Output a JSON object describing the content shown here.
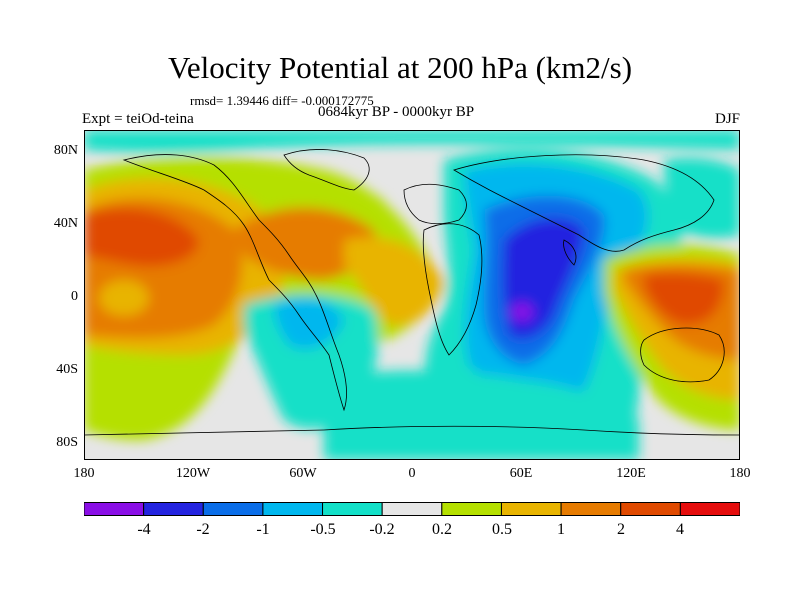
{
  "title": "Velocity Potential at 200 hPa (km2/s)",
  "stats": "rmsd= 1.39446 diff= -0.000172775",
  "experiment": "Expt = teiOd-teina",
  "period": "0684kyr BP - 0000kyr BP",
  "season": "DJF",
  "map": {
    "projection": "cylindrical equidistant",
    "lon_range": [
      -180,
      180
    ],
    "lat_range": [
      -90,
      90
    ],
    "y_ticks": [
      {
        "lat": 80,
        "label": "80N"
      },
      {
        "lat": 40,
        "label": "40N"
      },
      {
        "lat": 0,
        "label": "0"
      },
      {
        "lat": -40,
        "label": "40S"
      },
      {
        "lat": -80,
        "label": "80S"
      }
    ],
    "x_ticks": [
      {
        "lon": -180,
        "label": "180"
      },
      {
        "lon": -120,
        "label": "120W"
      },
      {
        "lon": -60,
        "label": "60W"
      },
      {
        "lon": 0,
        "label": "0"
      },
      {
        "lon": 60,
        "label": "60E"
      },
      {
        "lon": 120,
        "label": "120E"
      },
      {
        "lon": 180,
        "label": "180"
      }
    ]
  },
  "colorbar": {
    "colors": [
      "#8a0ee6",
      "#2424e0",
      "#0a6de8",
      "#00b7ee",
      "#12e0c8",
      "#e6e6e6",
      "#b5e000",
      "#e8b400",
      "#e67b00",
      "#e04a00",
      "#e50d0d"
    ],
    "labels": [
      "-4",
      "-2",
      "-1",
      "-0.5",
      "-0.2",
      "0.2",
      "0.5",
      "1",
      "2",
      "4"
    ]
  }
}
